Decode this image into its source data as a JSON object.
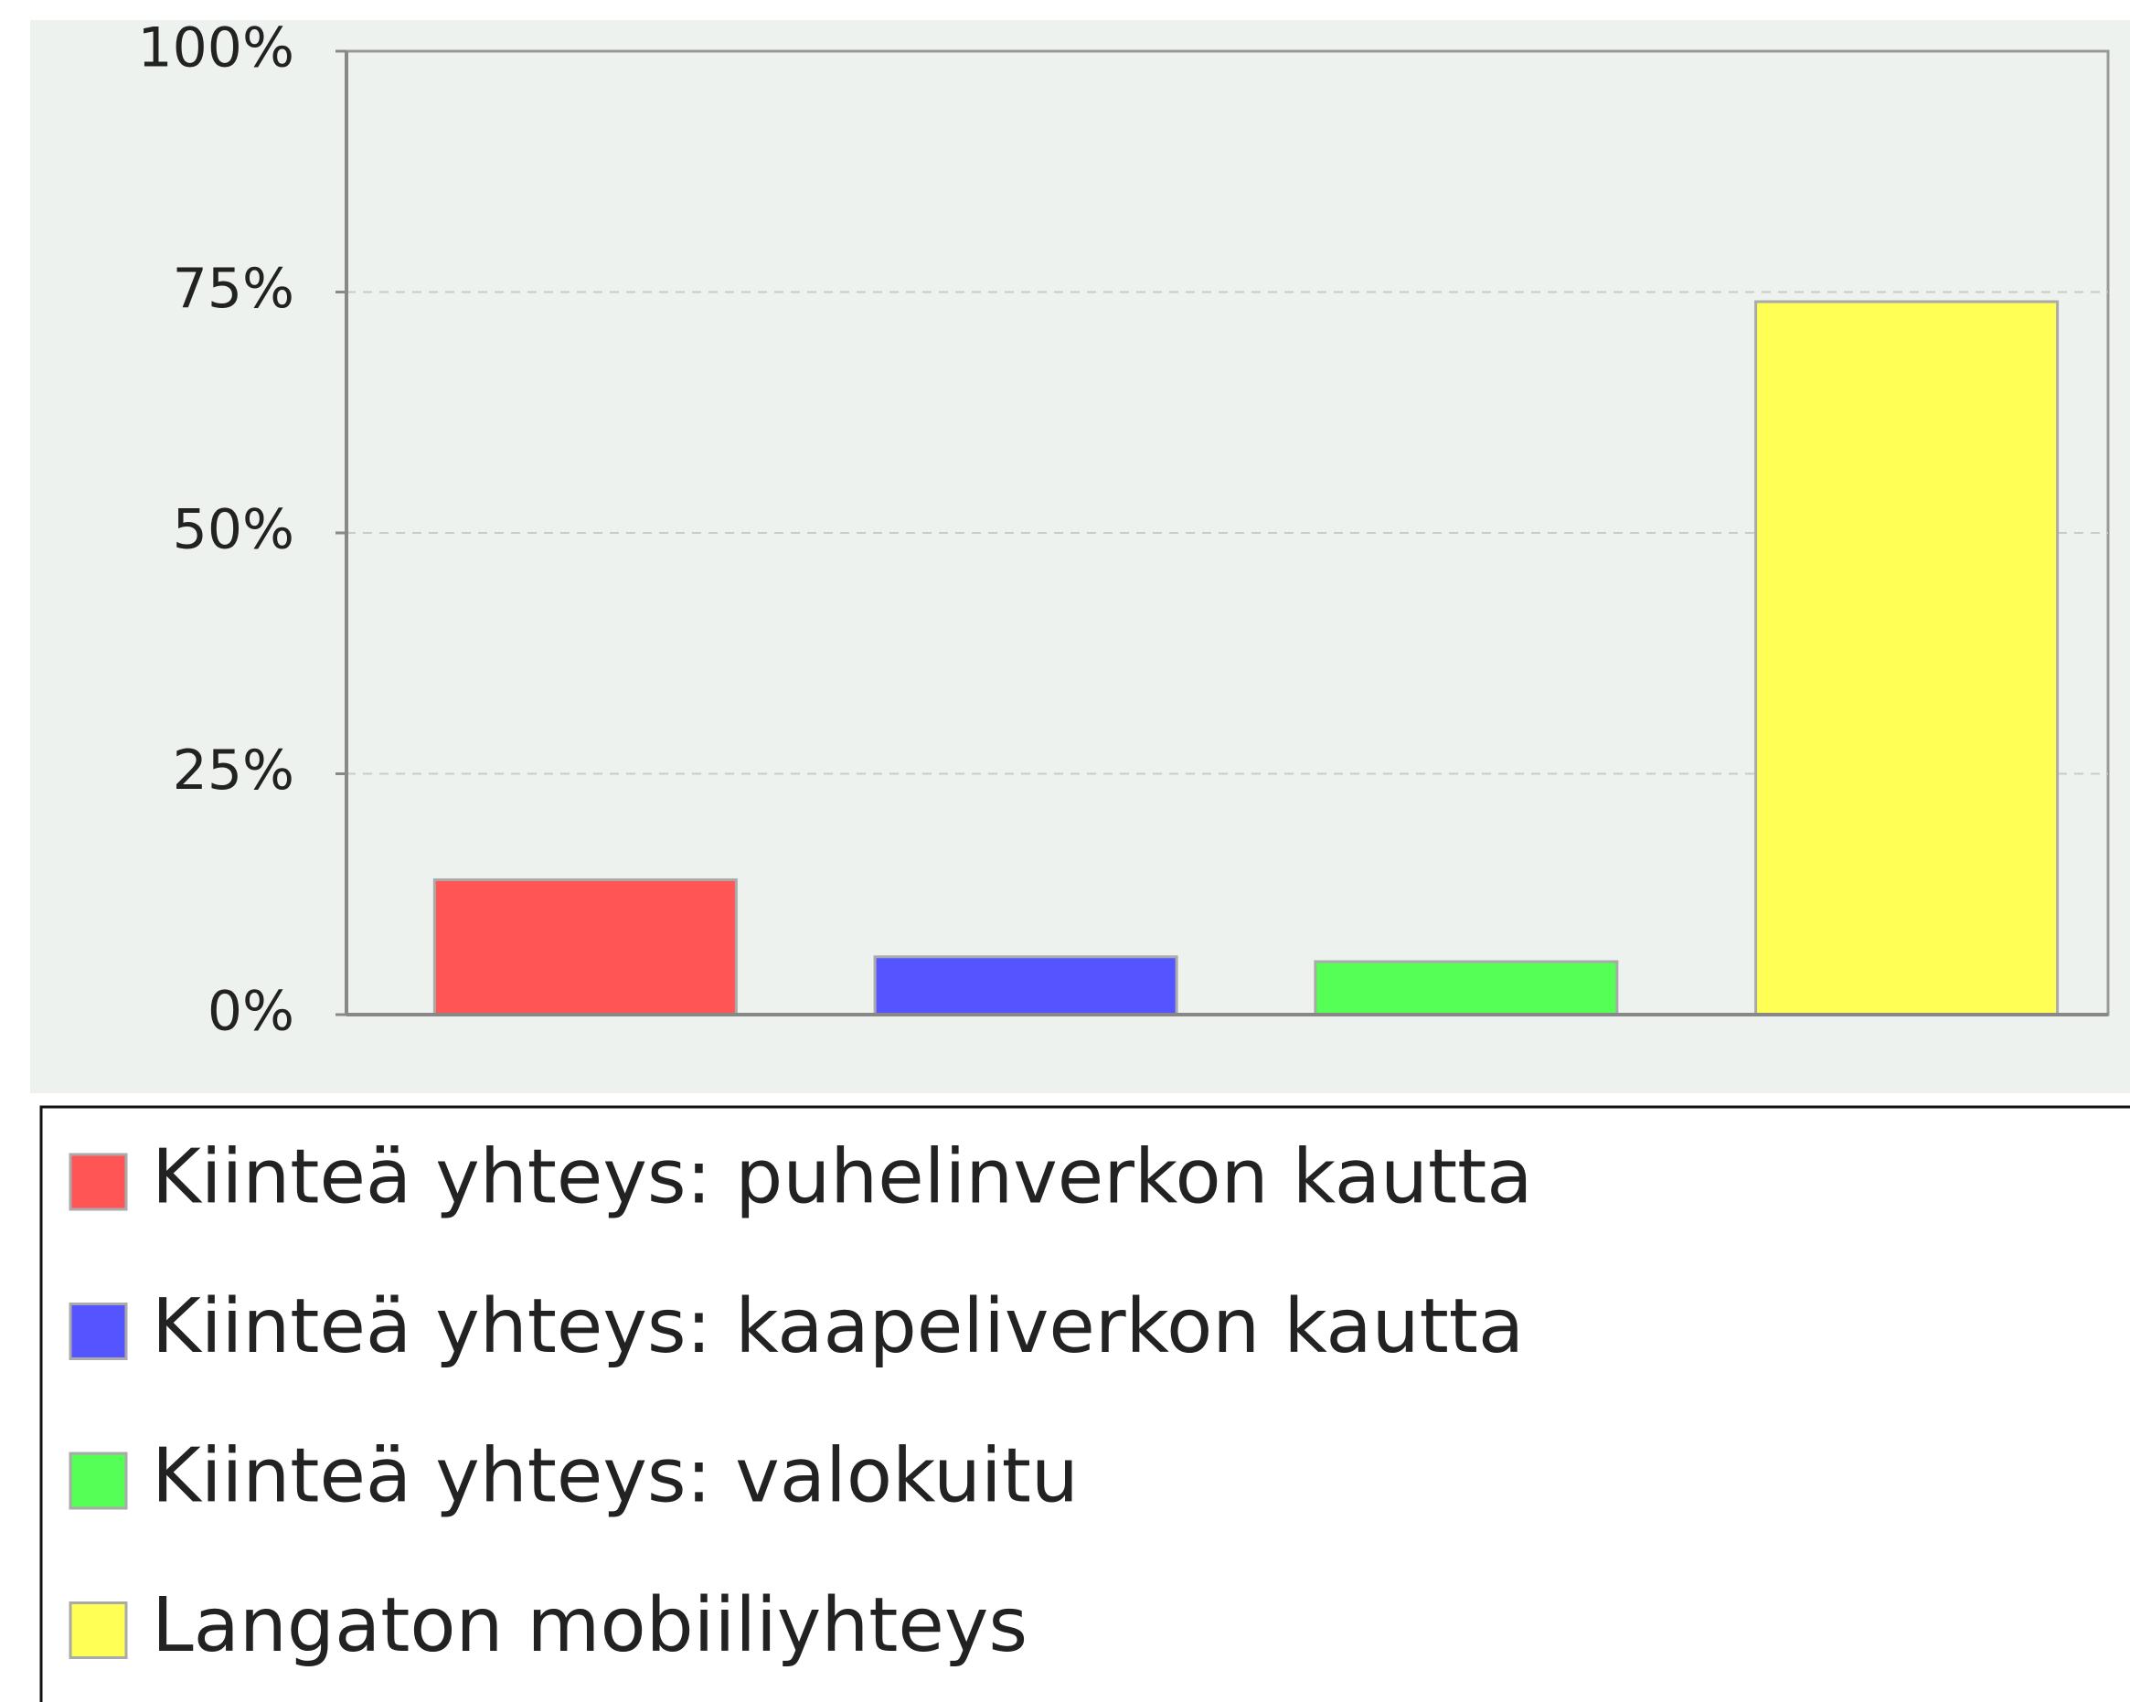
{
  "chart_data": {
    "type": "bar",
    "series": [
      {
        "name": "Kiinteä yhteys: puhelinverkon kautta",
        "color": "#ff5555",
        "values": [
          14
        ]
      },
      {
        "name": "Kiinteä yhteys: kaapeliverkon kautta",
        "color": "#5555ff",
        "values": [
          6
        ]
      },
      {
        "name": "Kiinteä yhteys: valokuitu",
        "color": "#55ff55",
        "values": [
          5.5
        ]
      },
      {
        "name": "Langaton mobiiliyhteys",
        "color": "#ffff55",
        "values": [
          74
        ]
      }
    ],
    "ylim": [
      0,
      100
    ],
    "yticks": [
      {
        "value": 0,
        "label": "0%"
      },
      {
        "value": 25,
        "label": "25%"
      },
      {
        "value": 50,
        "label": "50%"
      },
      {
        "value": 75,
        "label": "75%"
      },
      {
        "value": 100,
        "label": "100%"
      }
    ],
    "grid": true
  }
}
